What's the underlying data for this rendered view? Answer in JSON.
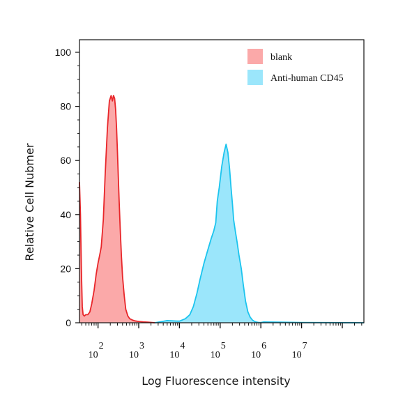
{
  "chart_data": {
    "type": "area",
    "title": "",
    "xlabel": "Log Fluorescence intensity",
    "ylabel": "Relative Cell Nubmer",
    "x_scale": "log",
    "xlim": [
      35,
      340000000
    ],
    "ylim": [
      0,
      100
    ],
    "y_ticks": [
      0,
      20,
      40,
      60,
      80,
      100
    ],
    "x_ticks": [
      {
        "value": 100,
        "base": "10",
        "exp": "2"
      },
      {
        "value": 1000,
        "base": "10",
        "exp": "3"
      },
      {
        "value": 10000,
        "base": "10",
        "exp": "4"
      },
      {
        "value": 100000,
        "base": "10",
        "exp": "5"
      },
      {
        "value": 1000000,
        "base": "10",
        "exp": "6"
      },
      {
        "value": 10000000,
        "base": "10",
        "exp": "7"
      }
    ],
    "grid": false,
    "legend_position": "top-right",
    "series": [
      {
        "name": "blank",
        "fill": "#fba9a9",
        "stroke": "#e8262a",
        "x": [
          35,
          37,
          39,
          41,
          43,
          46,
          50,
          56,
          63,
          70,
          80,
          90,
          100,
          110,
          120,
          135,
          150,
          170,
          190,
          210,
          225,
          240,
          255,
          270,
          285,
          300,
          315,
          330,
          350,
          375,
          400,
          440,
          480,
          540,
          600,
          700,
          800,
          1000,
          1300,
          1700,
          2500
        ],
        "y": [
          52,
          40,
          20,
          6,
          3,
          2.5,
          3,
          3,
          4,
          7,
          12,
          18,
          22,
          25,
          28,
          38,
          55,
          72,
          82,
          84,
          82,
          84,
          83,
          79,
          72,
          63,
          54,
          45,
          35,
          25,
          17,
          10,
          5,
          2.5,
          1.5,
          1,
          0.7,
          0.5,
          0.3,
          0.2,
          0
        ]
      },
      {
        "name": "Anti-human CD45",
        "fill": "#9be6fb",
        "stroke": "#1bc4ee",
        "x": [
          2500,
          5000,
          10000,
          14000,
          18000,
          22000,
          27000,
          32000,
          40000,
          50000,
          60000,
          70000,
          78000,
          85000,
          95000,
          110000,
          125000,
          140000,
          155000,
          170000,
          185000,
          200000,
          215000,
          235000,
          260000,
          290000,
          330000,
          370000,
          420000,
          480000,
          550000,
          620000,
          700000,
          800000,
          900000,
          1000000,
          1200000,
          3000000,
          10000000,
          340000000
        ],
        "y": [
          0,
          0.8,
          0.6,
          1.5,
          3,
          6,
          11,
          16,
          22,
          27,
          31,
          34,
          37,
          45,
          50,
          58,
          63,
          66,
          63,
          57,
          50,
          44,
          38,
          34,
          30,
          25,
          20,
          14,
          8,
          4,
          2,
          1,
          0.5,
          0.2,
          0.1,
          0.1,
          0.3,
          0.2,
          0.1,
          0
        ]
      }
    ]
  }
}
